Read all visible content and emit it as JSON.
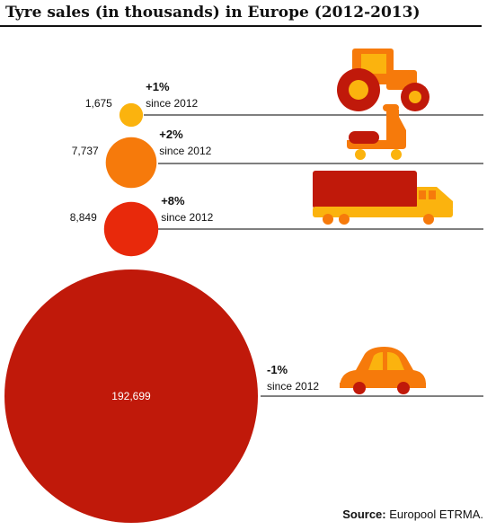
{
  "chart_data": {
    "type": "bubble",
    "title": "Tyre sales (in thousands) in Europe (2012-2013)",
    "categories": [
      "tractor",
      "scooter",
      "truck",
      "car"
    ],
    "values": [
      1675,
      7737,
      8849,
      192699
    ],
    "value_labels": [
      "1,675",
      "7,737",
      "8,849",
      "192,699"
    ],
    "changes": [
      "+1%",
      "+2%",
      "+8%",
      "-1%"
    ],
    "change_suffix": "since 2012",
    "colors": [
      "#fbb30e",
      "#f67a0b",
      "#e8290b",
      "#c0190a"
    ]
  },
  "source": {
    "label": "Source:",
    "text": "Europool ETRMA."
  },
  "icons": [
    "tractor-icon",
    "scooter-icon",
    "truck-icon",
    "car-icon"
  ]
}
